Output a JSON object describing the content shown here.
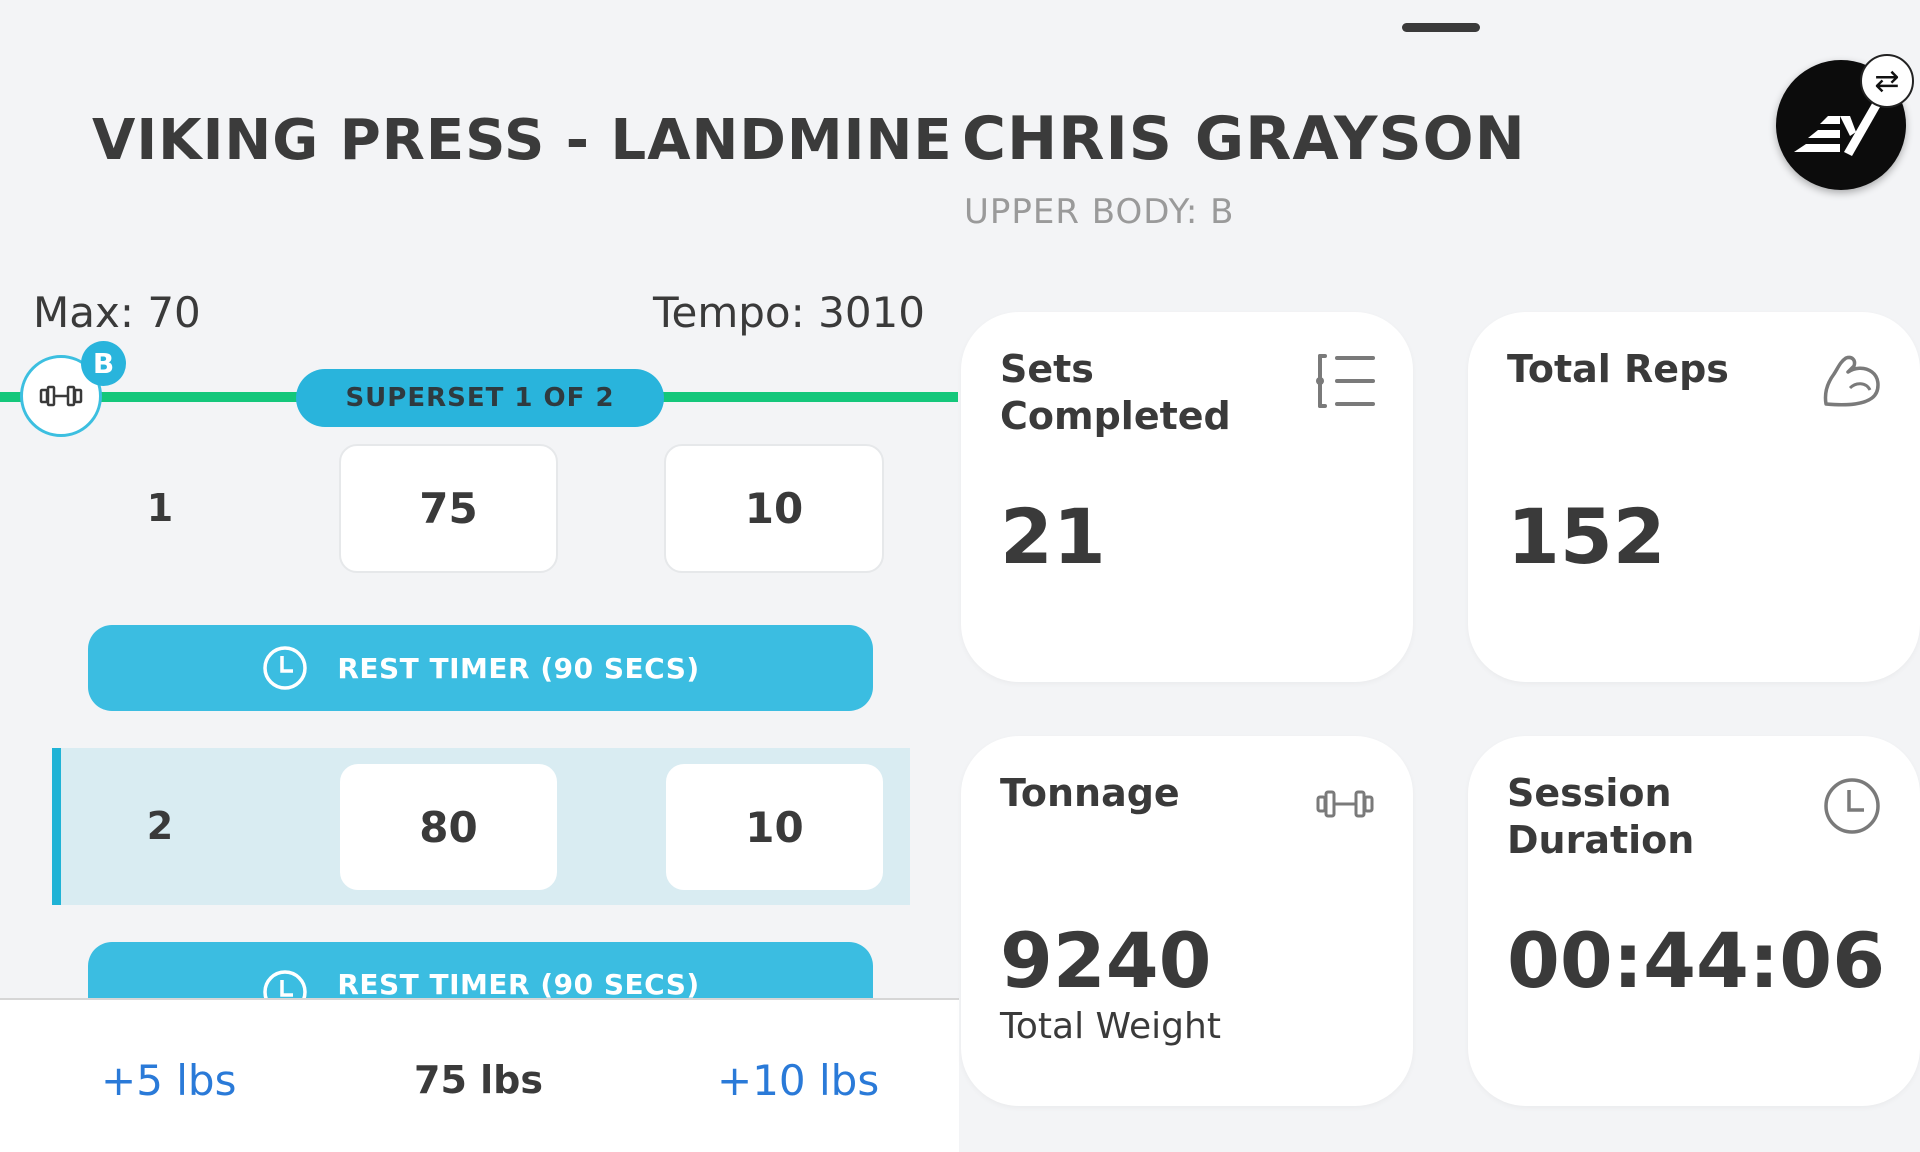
{
  "exercise": {
    "title": "VIKING PRESS - LANDMINE",
    "max_label": "Max: 70",
    "tempo_label": "Tempo: 3010",
    "equipment_badge": "B",
    "superset_label": "SUPERSET 1 OF 2"
  },
  "sets": [
    {
      "number": "1",
      "weight": "75",
      "reps": "10"
    },
    {
      "number": "2",
      "weight": "80",
      "reps": "10"
    }
  ],
  "rest_timer_label": "REST TIMER (90 SECS)",
  "weight_bar": {
    "minus_label": "+5 lbs",
    "current_label": "75 lbs",
    "plus_label": "+10 lbs"
  },
  "athlete": {
    "name": "CHRIS GRAYSON",
    "workout": "UPPER BODY: B"
  },
  "stats": {
    "sets_completed": {
      "title": "Sets Completed",
      "value": "21",
      "icon": "list-icon"
    },
    "total_reps": {
      "title": "Total Reps",
      "value": "152",
      "icon": "flexed-arm-icon"
    },
    "tonnage": {
      "title": "Tonnage",
      "value": "9240",
      "sub": "Total Weight",
      "icon": "dumbbell-icon"
    },
    "session_duration": {
      "title": "Session Duration",
      "value": "00:44:06",
      "icon": "clock-icon"
    }
  },
  "swap_icon_glyph": "⇄",
  "colors": {
    "accent": "#29b4dc",
    "track": "#14c77b",
    "link": "#2a7ad8"
  }
}
